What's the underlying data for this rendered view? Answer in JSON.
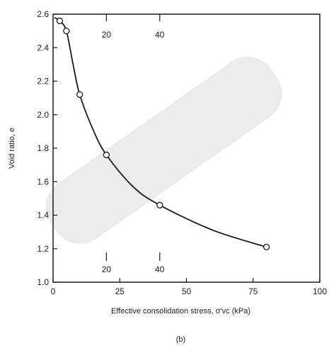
{
  "chart_data": {
    "type": "line",
    "xlabel": "Effective consolidation stress, σ'vc (kPa)",
    "ylabel": "Void ratio, e",
    "panel_label": "(b)",
    "xlim": [
      0,
      100
    ],
    "ylim": [
      1.0,
      2.6
    ],
    "x_ticks": [
      0,
      25,
      50,
      75,
      100
    ],
    "y_ticks": [
      1.0,
      1.2,
      1.4,
      1.6,
      1.8,
      2.0,
      2.2,
      2.4,
      2.6
    ],
    "inner_ticks_top": [
      20,
      40
    ],
    "inner_ticks_bottom": [
      20,
      40
    ],
    "grid": false,
    "series": [
      {
        "markers": [
          {
            "x": 2.5,
            "y": 2.56
          },
          {
            "x": 5,
            "y": 2.5
          },
          {
            "x": 10,
            "y": 2.12
          },
          {
            "x": 20,
            "y": 1.76
          },
          {
            "x": 40,
            "y": 1.46
          },
          {
            "x": 80,
            "y": 1.21
          }
        ],
        "curve": [
          {
            "x": 0.5,
            "y": 2.58
          },
          {
            "x": 2.5,
            "y": 2.56
          },
          {
            "x": 5,
            "y": 2.5
          },
          {
            "x": 7.5,
            "y": 2.3
          },
          {
            "x": 10,
            "y": 2.12
          },
          {
            "x": 15,
            "y": 1.91
          },
          {
            "x": 20,
            "y": 1.76
          },
          {
            "x": 30,
            "y": 1.57
          },
          {
            "x": 40,
            "y": 1.46
          },
          {
            "x": 60,
            "y": 1.31
          },
          {
            "x": 80,
            "y": 1.21
          }
        ]
      }
    ]
  },
  "style": {
    "line_color": "#1a1a1a",
    "watermark_color": "#dcdcdc"
  }
}
